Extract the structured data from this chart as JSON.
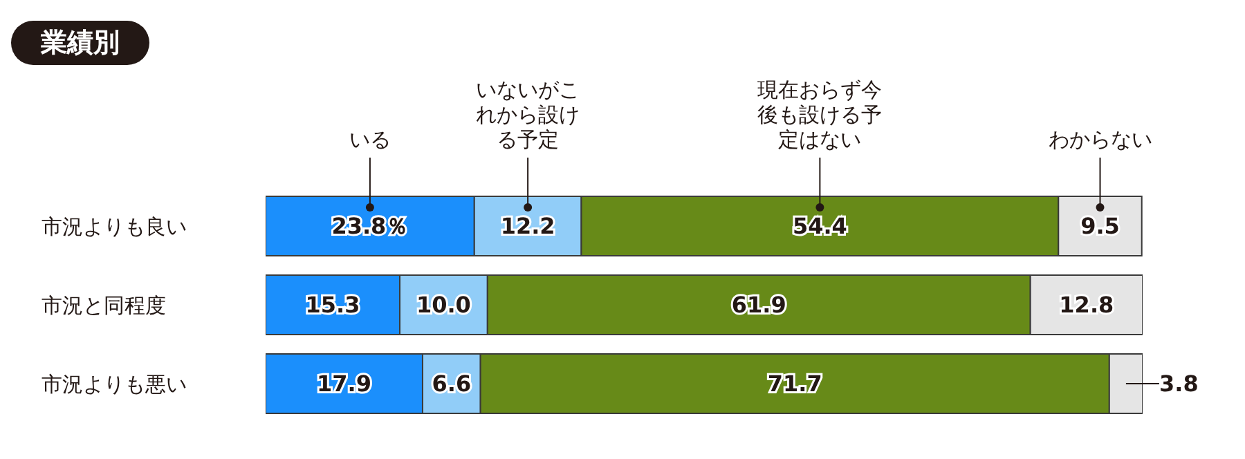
{
  "chart_data": {
    "type": "bar",
    "orientation": "horizontal",
    "stacked": true,
    "title": "業績別",
    "categories": [
      "市況よりも良い",
      "市況と同程度",
      "市況よりも悪い"
    ],
    "series": [
      {
        "name": "いる",
        "color": "#1b8ffc",
        "values": [
          23.8,
          15.3,
          17.9
        ],
        "value_labels": [
          "23.8％",
          "15.3",
          "17.9"
        ]
      },
      {
        "name": "いないがこれから設ける予定",
        "color": "#91cdf8",
        "values": [
          12.2,
          10.0,
          6.6
        ],
        "value_labels": [
          "12.2",
          "10.0",
          "6.6"
        ]
      },
      {
        "name": "現在おらず今後も設ける予定はない",
        "color": "#678a18",
        "values": [
          54.4,
          61.9,
          71.7
        ],
        "value_labels": [
          "54.4",
          "61.9",
          "71.7"
        ]
      },
      {
        "name": "わからない",
        "color": "#e5e5e5",
        "values": [
          9.5,
          12.8,
          3.8
        ],
        "value_labels": [
          "9.5",
          "12.8",
          "3.8"
        ]
      }
    ],
    "xlim": [
      0,
      100
    ],
    "tick_labels": false,
    "legend": false,
    "grid": false
  }
}
